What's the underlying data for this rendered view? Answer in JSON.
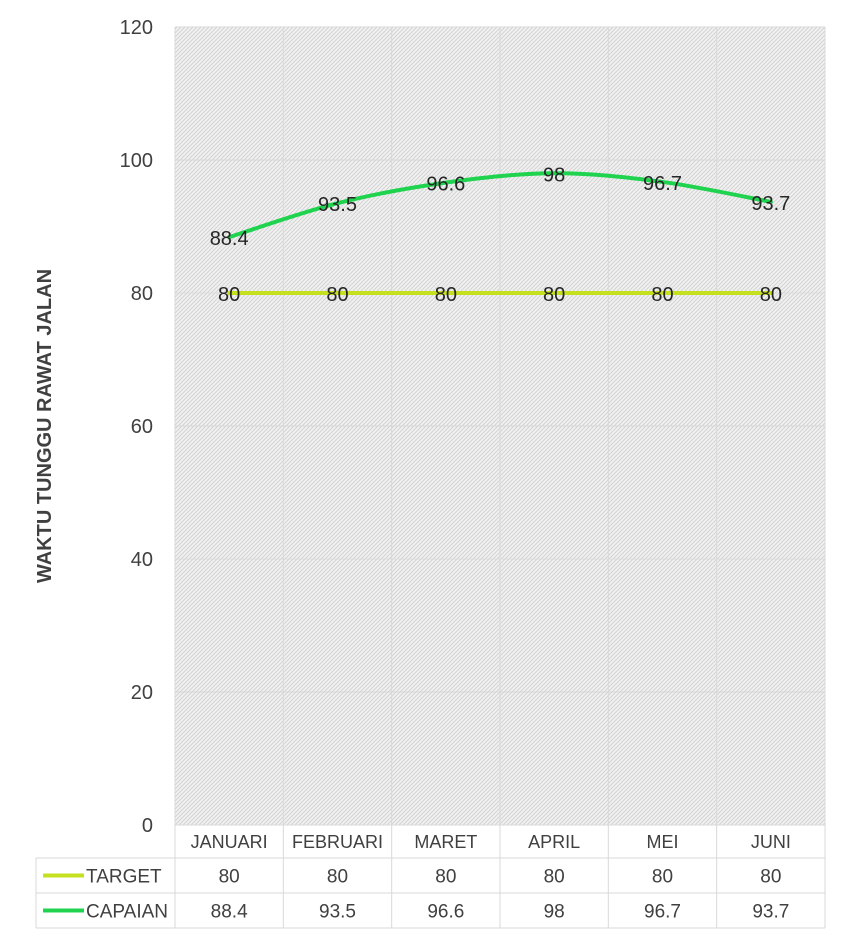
{
  "chart_data": {
    "type": "line",
    "title": "",
    "ylabel": "WAKTU TUNGGU RAWAT JALAN",
    "xlabel": "",
    "categories": [
      "JANUARI",
      "FEBRUARI",
      "MARET",
      "APRIL",
      "MEI",
      "JUNI"
    ],
    "ylim": [
      0,
      120
    ],
    "yticks": [
      0,
      20,
      40,
      60,
      80,
      100,
      120
    ],
    "grid": true,
    "data_table": true,
    "series": [
      {
        "name": "TARGET",
        "values": [
          80,
          80,
          80,
          80,
          80,
          80
        ],
        "color": "#c5e01e"
      },
      {
        "name": "CAPAIAN",
        "values": [
          88.4,
          93.5,
          96.6,
          98,
          96.7,
          93.7
        ],
        "color": "#1fd34f"
      }
    ]
  }
}
